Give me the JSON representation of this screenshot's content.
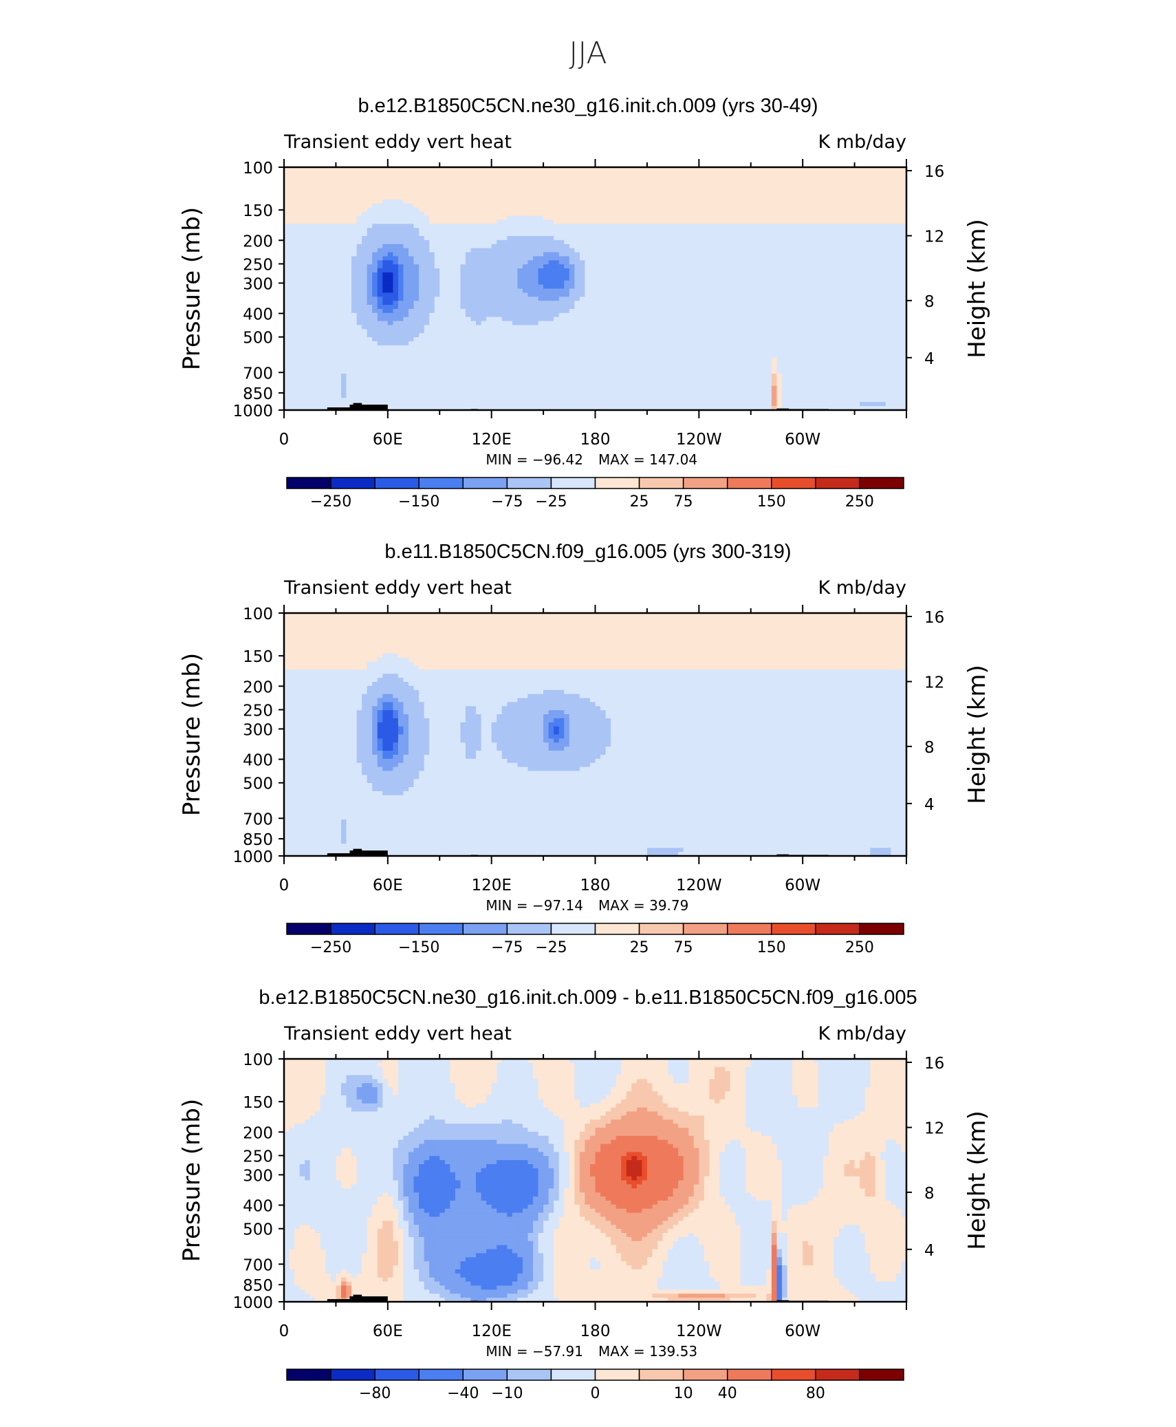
{
  "figure_title": "JJA",
  "chart_data": [
    {
      "type": "heatmap",
      "title": "b.e12.B1850C5CN.ne30_g16.init.ch.009 (yrs 30-49)",
      "left_string": "Transient eddy vert heat",
      "right_string": "K mb/day",
      "ylabel": "Pressure (mb)",
      "y2label": "Height (km)",
      "y_ticks": [
        100,
        150,
        200,
        250,
        300,
        400,
        500,
        700,
        850,
        1000
      ],
      "y2_ticks": [
        16,
        12,
        8,
        4
      ],
      "x_ticks": [
        "0",
        "60E",
        "120E",
        "180",
        "120W",
        "60W"
      ],
      "xlim": [
        0,
        360
      ],
      "ylim": [
        1000,
        100
      ],
      "min_label": "MIN = −96.42",
      "max_label": "MAX = 147.04",
      "colorbar_labels": [
        "−250",
        "−150",
        "−75",
        "−25",
        "25",
        "75",
        "150",
        "250"
      ],
      "features": [
        {
          "type": "blob",
          "lon": 63,
          "p": 300,
          "rlon": 22,
          "rlog": 0.23,
          "val": -70
        },
        {
          "type": "blob",
          "lon": 140,
          "p": 290,
          "rlon": 30,
          "rlog": 0.2,
          "val": -45
        },
        {
          "type": "blob",
          "lon": 110,
          "p": 320,
          "rlon": 8,
          "rlog": 0.15,
          "val": -26
        },
        {
          "type": "blob",
          "lon": 158,
          "p": 280,
          "rlon": 12,
          "rlog": 0.09,
          "val": -60
        },
        {
          "type": "blob",
          "lon": 60,
          "p": 300,
          "rlon": 6,
          "rlog": 0.09,
          "val": -100
        },
        {
          "type": "blob",
          "lon": 225,
          "p": 420,
          "rlon": 30,
          "rlog": 0.09,
          "val": 6
        },
        {
          "type": "blob",
          "lon": 205,
          "p": 720,
          "rlon": 45,
          "rlog": 0.06,
          "val": 6
        },
        {
          "type": "blob",
          "lon": 20,
          "p": 600,
          "rlon": 12,
          "rlog": 0.25,
          "val": 6
        },
        {
          "type": "blob",
          "lon": 35,
          "p": 800,
          "rlon": 3,
          "rlog": 0.08,
          "val": -30
        },
        {
          "type": "blob",
          "lon": 284,
          "p": 880,
          "rlon": 2,
          "rlog": 0.1,
          "val": 70
        },
        {
          "type": "blob",
          "lon": 340,
          "p": 950,
          "rlon": 10,
          "rlog": 0.02,
          "val": -30
        }
      ]
    },
    {
      "type": "heatmap",
      "title": "b.e11.B1850C5CN.f09_g16.005 (yrs 300-319)",
      "left_string": "Transient eddy vert heat",
      "right_string": "K mb/day",
      "ylabel": "Pressure (mb)",
      "y2label": "Height (km)",
      "y_ticks": [
        100,
        150,
        200,
        250,
        300,
        400,
        500,
        700,
        850,
        1000
      ],
      "y2_ticks": [
        16,
        12,
        8,
        4
      ],
      "x_ticks": [
        "0",
        "60E",
        "120E",
        "180",
        "120W",
        "60W"
      ],
      "xlim": [
        0,
        360
      ],
      "ylim": [
        1000,
        100
      ],
      "min_label": "MIN = −97.14",
      "max_label": "MAX = 39.79",
      "colorbar_labels": [
        "−250",
        "−150",
        "−75",
        "−25",
        "25",
        "75",
        "150",
        "250"
      ],
      "features": [
        {
          "type": "blob",
          "lon": 62,
          "p": 320,
          "rlon": 20,
          "rlog": 0.24,
          "val": -55
        },
        {
          "type": "blob",
          "lon": 155,
          "p": 310,
          "rlon": 42,
          "rlog": 0.2,
          "val": -38
        },
        {
          "type": "blob",
          "lon": 108,
          "p": 310,
          "rlon": 5,
          "rlog": 0.12,
          "val": -26
        },
        {
          "type": "blob",
          "lon": 158,
          "p": 300,
          "rlon": 6,
          "rlog": 0.07,
          "val": -60
        },
        {
          "type": "blob",
          "lon": 60,
          "p": 300,
          "rlon": 6,
          "rlog": 0.1,
          "val": -90
        },
        {
          "type": "blob",
          "lon": 200,
          "p": 720,
          "rlon": 55,
          "rlog": 0.06,
          "val": 6
        },
        {
          "type": "blob",
          "lon": 20,
          "p": 550,
          "rlon": 12,
          "rlog": 0.25,
          "val": 6
        },
        {
          "type": "blob",
          "lon": 35,
          "p": 800,
          "rlon": 3,
          "rlog": 0.08,
          "val": -30
        },
        {
          "type": "blob",
          "lon": 330,
          "p": 650,
          "rlon": 20,
          "rlog": 0.15,
          "val": 6
        },
        {
          "type": "blob",
          "lon": 220,
          "p": 960,
          "rlon": 18,
          "rlog": 0.02,
          "val": -30
        },
        {
          "type": "blob",
          "lon": 345,
          "p": 960,
          "rlon": 12,
          "rlog": 0.02,
          "val": -30
        }
      ]
    },
    {
      "type": "heatmap",
      "title": "b.e12.B1850C5CN.ne30_g16.init.ch.009 - b.e11.B1850C5CN.f09_g16.005",
      "left_string": "Transient eddy vert heat",
      "right_string": "K mb/day",
      "ylabel": "Pressure (mb)",
      "y2label": "Height (km)",
      "y_ticks": [
        100,
        150,
        200,
        250,
        300,
        400,
        500,
        700,
        850,
        1000
      ],
      "y2_ticks": [
        16,
        12,
        8,
        4
      ],
      "x_ticks": [
        "0",
        "60E",
        "120E",
        "180",
        "120W",
        "60W"
      ],
      "xlim": [
        0,
        360
      ],
      "ylim": [
        1000,
        100
      ],
      "min_label": "MIN = −57.91",
      "max_label": "MAX = 139.53",
      "colorbar_labels": [
        "−80",
        "−40",
        "−10",
        "0",
        "10",
        "40",
        "80"
      ],
      "features": [
        {
          "type": "blob",
          "lon": 110,
          "p": 350,
          "rlon": 45,
          "rlog": 0.3,
          "val": -16
        },
        {
          "type": "blob",
          "lon": 85,
          "p": 320,
          "rlon": 12,
          "rlog": 0.15,
          "val": -25
        },
        {
          "type": "blob",
          "lon": 135,
          "p": 320,
          "rlon": 15,
          "rlog": 0.12,
          "val": -25
        },
        {
          "type": "blob",
          "lon": 118,
          "p": 750,
          "rlon": 25,
          "rlog": 0.1,
          "val": -25
        },
        {
          "type": "blob",
          "lon": 202,
          "p": 290,
          "rlon": 45,
          "rlog": 0.28,
          "val": 12
        },
        {
          "type": "blob",
          "lon": 203,
          "p": 290,
          "rlon": 25,
          "rlog": 0.17,
          "val": 25
        },
        {
          "type": "blob",
          "lon": 203,
          "p": 280,
          "rlon": 6,
          "rlog": 0.06,
          "val": 45
        },
        {
          "type": "blob",
          "lon": 50,
          "p": 140,
          "rlon": 8,
          "rlog": 0.06,
          "val": -14
        },
        {
          "type": "blob",
          "lon": 240,
          "p": 950,
          "rlon": 30,
          "rlog": 0.02,
          "val": 14
        },
        {
          "type": "blob",
          "lon": 284,
          "p": 800,
          "rlon": 2,
          "rlog": 0.18,
          "val": 40
        },
        {
          "type": "blob",
          "lon": 287,
          "p": 850,
          "rlon": 2,
          "rlog": 0.12,
          "val": -45
        },
        {
          "type": "blob",
          "lon": 340,
          "p": 300,
          "rlon": 5,
          "rlog": 0.1,
          "val": 8
        },
        {
          "type": "blob",
          "lon": 35,
          "p": 900,
          "rlon": 3,
          "rlog": 0.05,
          "val": 25
        },
        {
          "type": "blob",
          "lon": 60,
          "p": 450,
          "rlon": 8,
          "rlog": 0.3,
          "val": 6
        }
      ]
    }
  ]
}
